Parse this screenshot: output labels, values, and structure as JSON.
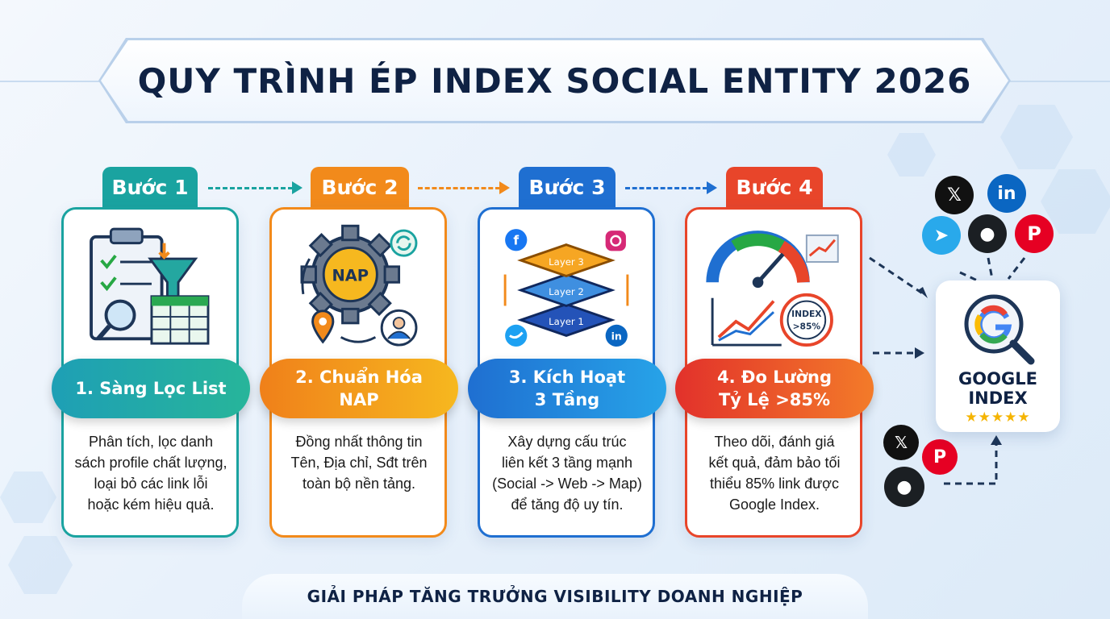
{
  "title": "QUY TRÌNH ÉP INDEX SOCIAL ENTITY 2026",
  "steps": [
    {
      "tab": "Bước 1",
      "name_line1": "1. Sàng Lọc List",
      "name_line2": "",
      "desc": [
        "Phân tích, lọc danh",
        "sách profile chất lượng,",
        "loại bỏ các link lỗi",
        "hoặc kém hiệu quả."
      ],
      "color": "#1aa3a0"
    },
    {
      "tab": "Bước 2",
      "name_line1": "2. Chuẩn Hóa",
      "name_line2": "NAP",
      "desc": [
        "Đồng nhất thông tin",
        "Tên, Địa chỉ, Sđt trên",
        "toàn bộ nền tảng."
      ],
      "color": "#f28a1b",
      "icon_text": "NAP"
    },
    {
      "tab": "Bước 3",
      "name_line1": "3. Kích Hoạt",
      "name_line2": "3 Tầng",
      "desc": [
        "Xây dựng cấu trúc",
        "liên kết 3 tầng mạnh",
        "(Social -> Web -> Map)",
        "để tăng độ uy tín."
      ],
      "color": "#1f6fd1",
      "layers": [
        "Layer 3",
        "Layer 2",
        "Layer 1"
      ]
    },
    {
      "tab": "Bước 4",
      "name_line1": "4. Đo Lường",
      "name_line2": "Tỷ Lệ >85%",
      "desc": [
        "Theo dõi, đánh giá",
        "kết quả, đảm bảo tối",
        "thiểu 85% link được",
        "Google Index."
      ],
      "color": "#e8452a",
      "target_line1": "INDEX",
      "target_line2": ">85%"
    }
  ],
  "google": {
    "line1": "GOOGLE",
    "line2": "INDEX",
    "stars": "★★★★★"
  },
  "social_icons": {
    "x": "𝕏",
    "linkedin": "in",
    "telegram": "➤",
    "github": "●",
    "pinterest": "P"
  },
  "footer": "GIẢI PHÁP TĂNG TRƯỞNG VISIBILITY DOANH NGHIỆP"
}
